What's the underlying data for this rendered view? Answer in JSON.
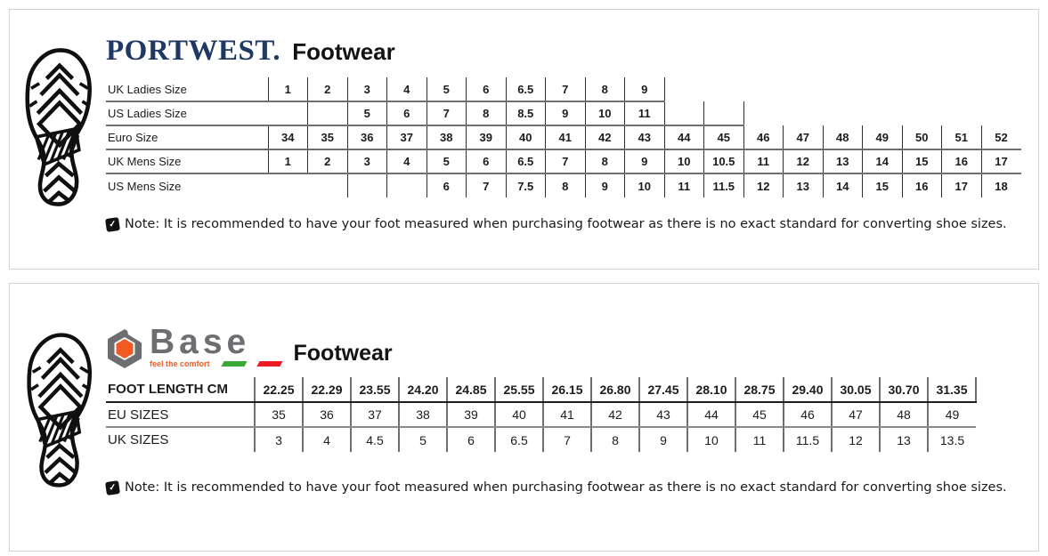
{
  "panels": [
    {
      "brand": "PORTWEST.",
      "title": "Footwear",
      "table": {
        "rows": [
          {
            "label": "UK Ladies Size",
            "values": [
              "1",
              "2",
              "3",
              "4",
              "5",
              "6",
              "6.5",
              "7",
              "8",
              "9",
              "",
              "",
              "",
              "",
              "",
              "",
              "",
              "",
              ""
            ]
          },
          {
            "label": "US Ladies Size",
            "values": [
              "",
              "",
              "5",
              "6",
              "7",
              "8",
              "8.5",
              "9",
              "10",
              "11",
              "",
              "",
              "",
              "",
              "",
              "",
              "",
              "",
              ""
            ]
          },
          {
            "label": "Euro Size",
            "values": [
              "34",
              "35",
              "36",
              "37",
              "38",
              "39",
              "40",
              "41",
              "42",
              "43",
              "44",
              "45",
              "46",
              "47",
              "48",
              "49",
              "50",
              "51",
              "52"
            ]
          },
          {
            "label": "UK Mens Size",
            "values": [
              "1",
              "2",
              "3",
              "4",
              "5",
              "6",
              "6.5",
              "7",
              "8",
              "9",
              "10",
              "10.5",
              "11",
              "12",
              "13",
              "14",
              "15",
              "16",
              "17"
            ]
          },
          {
            "label": "US Mens Size",
            "values": [
              "",
              "",
              "",
              "",
              "6",
              "7",
              "7.5",
              "8",
              "9",
              "10",
              "11",
              "11.5",
              "12",
              "13",
              "14",
              "15",
              "16",
              "17",
              "18"
            ]
          }
        ]
      },
      "note": "Note: It is recommended to have your foot measured when purchasing footwear as there is no exact standard for converting shoe sizes."
    },
    {
      "brand": "Base",
      "tagline": "feel the comfort",
      "title": "Footwear",
      "table": {
        "rows": [
          {
            "label": "FOOT LENGTH CM",
            "values": [
              "22.25",
              "22.29",
              "23.55",
              "24.20",
              "24.85",
              "25.55",
              "26.15",
              "26.80",
              "27.45",
              "28.10",
              "28.75",
              "29.40",
              "30.05",
              "30.70",
              "31.35"
            ]
          },
          {
            "label": "EU SIZES",
            "values": [
              "35",
              "36",
              "37",
              "38",
              "39",
              "40",
              "41",
              "42",
              "43",
              "44",
              "45",
              "46",
              "47",
              "48",
              "49"
            ]
          },
          {
            "label": "UK SIZES",
            "values": [
              "3",
              "4",
              "4.5",
              "5",
              "6",
              "6.5",
              "7",
              "8",
              "9",
              "10",
              "11",
              "11.5",
              "12",
              "13",
              "13.5"
            ]
          }
        ]
      },
      "note": "Note: It is recommended to have your foot measured when purchasing footwear as there is no exact standard for converting shoe sizes."
    }
  ],
  "icons": {
    "note_check_glyph": "✓"
  },
  "colors": {
    "portwest_navy": "#1f3864",
    "base_gray": "#6d6e71",
    "base_orange": "#f15a22",
    "flag_green": "#39a935",
    "flag_red": "#ed1c24"
  }
}
